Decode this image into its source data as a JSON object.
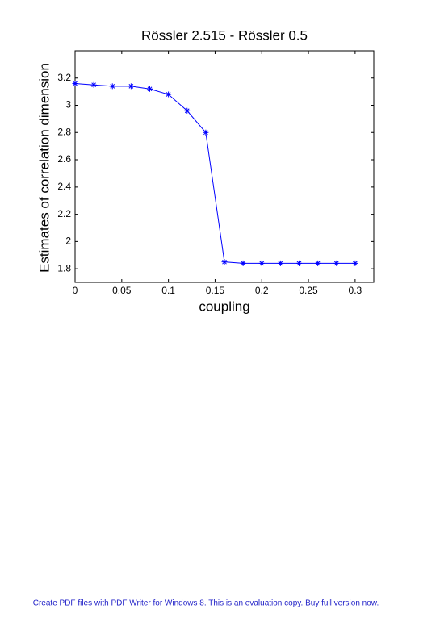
{
  "chart_data": {
    "type": "line",
    "title": "Rössler 2.515 - Rössler 0.5",
    "xlabel": "coupling",
    "ylabel": "Estimates of correlation dimension",
    "x": [
      0,
      0.02,
      0.04,
      0.06,
      0.08,
      0.1,
      0.12,
      0.14,
      0.16,
      0.18,
      0.2,
      0.22,
      0.24,
      0.26,
      0.28,
      0.3
    ],
    "series": [
      {
        "color": "#0000ff",
        "values": [
          3.16,
          3.15,
          3.14,
          3.14,
          3.12,
          3.08,
          2.96,
          2.8,
          1.85,
          1.84,
          1.84,
          1.84,
          1.84,
          1.84,
          1.84,
          1.84
        ]
      }
    ],
    "xlim": [
      0,
      0.32
    ],
    "ylim": [
      1.7,
      3.4
    ],
    "xticks": [
      0,
      0.05,
      0.1,
      0.15,
      0.2,
      0.25,
      0.3
    ],
    "yticks": [
      1.8,
      2,
      2.2,
      2.4,
      2.6,
      2.8,
      3,
      3.2
    ]
  },
  "footer": "Create PDF files with PDF Writer for Windows 8. This is an evaluation copy. Buy full version now."
}
